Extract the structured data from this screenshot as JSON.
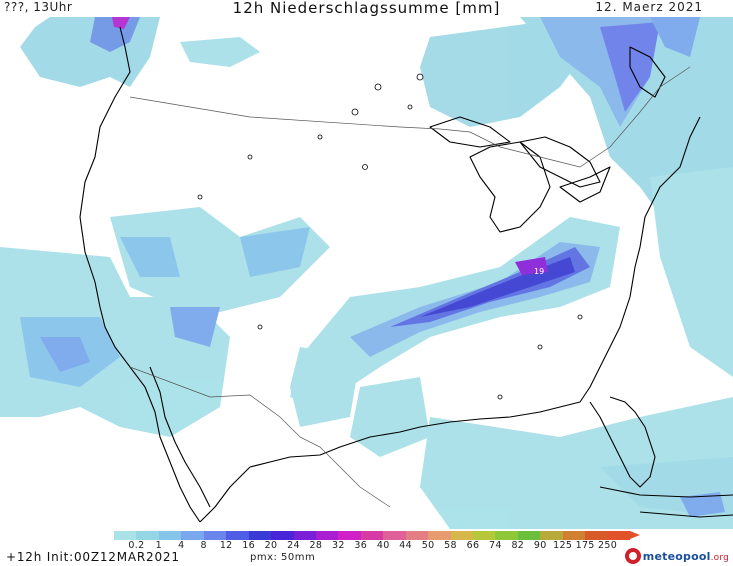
{
  "header": {
    "left_label": "???, 13Uhr",
    "title": "12h Niederschlagssumme [mm]",
    "date": "12. Maerz 2021"
  },
  "map": {
    "max_marker": "19",
    "colors": {
      "light_cyan": "#a8e0e8",
      "cyan": "#8fd3df",
      "light_blue": "#7fb8e8",
      "blue": "#5a78e0",
      "dark_blue": "#3a3fd0",
      "violet": "#7a2ad8",
      "magenta": "#d020d0"
    }
  },
  "legend": {
    "labels": [
      "0.2",
      "1",
      "4",
      "8",
      "12",
      "16",
      "20",
      "24",
      "28",
      "32",
      "36",
      "40",
      "44",
      "50",
      "58",
      "66",
      "74",
      "82",
      "90",
      "125",
      "175",
      "250"
    ],
    "colors": [
      "#a9e3e8",
      "#95d6e6",
      "#86c4ea",
      "#7aa8ee",
      "#6a86ea",
      "#4f5ee4",
      "#3a3ad4",
      "#4a24d8",
      "#7a1fd8",
      "#a81ed0",
      "#d020c8",
      "#d83aa4",
      "#e0609a",
      "#e27e84",
      "#e89a70",
      "#d6b84a",
      "#b4c83a",
      "#8ec83a",
      "#6ac03a",
      "#b8aa3a",
      "#d08030",
      "#d85a28",
      "#e1542a"
    ]
  },
  "footer": {
    "init_text": "+12h Init:00Z12MAR2021",
    "pmx_text": "pmx: 50mm",
    "logo_text": "meteopool",
    "logo_tld": ".org"
  }
}
